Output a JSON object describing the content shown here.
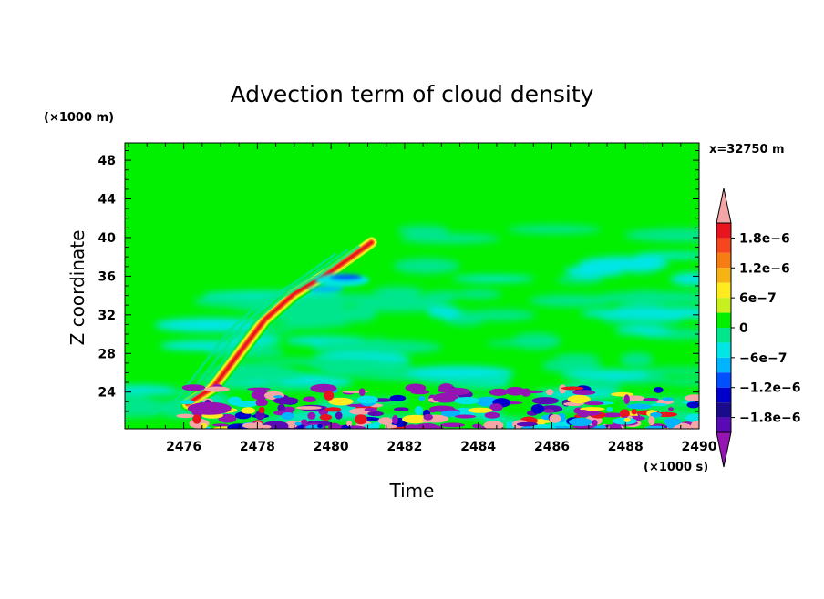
{
  "chart_data": {
    "type": "heatmap",
    "title": "Advection term of cloud density",
    "xlabel": "Time",
    "ylabel": "Z coordinate",
    "x_unit_label": "(×1000 s)",
    "y_unit_label": "(×1000 m)",
    "annotation": "x=32750 m",
    "xlim": [
      2474.4,
      2490
    ],
    "ylim": [
      20.2,
      49.8
    ],
    "x_ticks": [
      2476,
      2478,
      2480,
      2482,
      2484,
      2486,
      2488,
      2490
    ],
    "x_tick_labels": [
      "2476",
      "2478",
      "2480",
      "2482",
      "2484",
      "2486",
      "2488",
      "2490"
    ],
    "y_ticks": [
      24,
      28,
      32,
      36,
      40,
      44,
      48
    ],
    "y_tick_labels": [
      "24",
      "28",
      "32",
      "36",
      "40",
      "44",
      "48"
    ],
    "colorbar": {
      "levels": [
        -1.8e-06,
        -1.5e-06,
        -1.2e-06,
        -9e-07,
        -6e-07,
        -3e-07,
        0,
        3e-07,
        6e-07,
        9e-07,
        1.2e-06,
        1.5e-06,
        1.8e-06
      ],
      "labels": [
        "1.8e−6",
        "1.2e−6",
        "6e−7",
        "0",
        "−6e−7",
        "−1.2e−6",
        "−1.8e−6"
      ],
      "colors_top_to_bottom": [
        "#f4a6a6",
        "#e8141e",
        "#f5461e",
        "#f57d14",
        "#f5b414",
        "#ffeb1e",
        "#c8f01e",
        "#00f000",
        "#00e68c",
        "#00e6e6",
        "#00b4ff",
        "#0050ff",
        "#0000cd",
        "#1a0a8c",
        "#5a0ab4",
        "#9614b4"
      ]
    },
    "background_color": "#00f000",
    "features": [
      {
        "name": "positive ridge",
        "sign": "positive",
        "points": [
          [
            2476.1,
            22.8
          ],
          [
            2476.8,
            24.5
          ],
          [
            2477.5,
            28.0
          ],
          [
            2478.2,
            31.5
          ],
          [
            2479.0,
            34.2
          ],
          [
            2480.0,
            36.5
          ],
          [
            2481.1,
            39.5
          ]
        ],
        "magnitude": 1.8e-06
      },
      {
        "name": "negative patch",
        "sign": "negative",
        "center": [
          2480.3,
          35.6
        ],
        "magnitude": -1.2e-06
      },
      {
        "name": "turbulent layer near surface",
        "sign": "mixed",
        "z_range": [
          20.2,
          24.5
        ],
        "x_range": [
          2476.0,
          2490
        ]
      }
    ]
  }
}
